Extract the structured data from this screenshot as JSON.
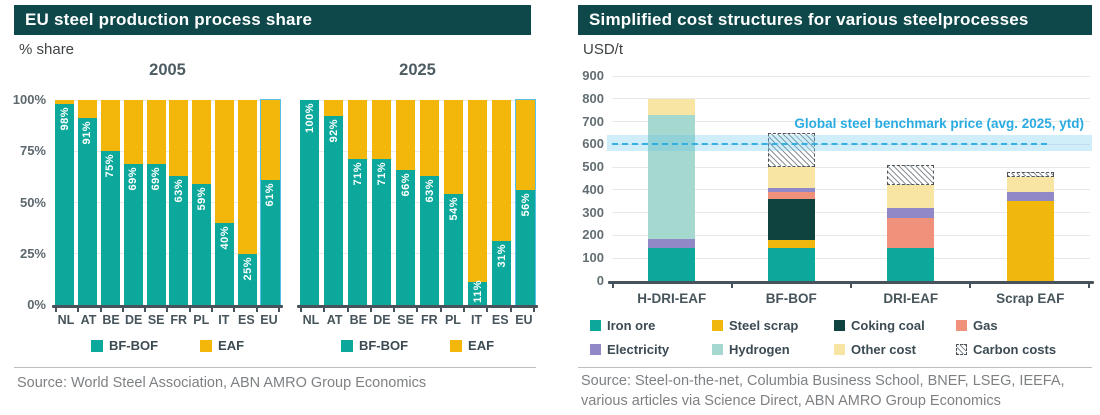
{
  "left_panel": {
    "title": "EU steel production process share",
    "unit_label": "% share",
    "source": "Source: World Steel Association, ABN AMRO Group Economics",
    "legend": [
      {
        "label": "BF-BOF",
        "color_key": "bfbof"
      },
      {
        "label": "EAF",
        "color_key": "eaf"
      }
    ],
    "chart_data": {
      "type": "bar",
      "stacked": true,
      "ylabel": "% share",
      "ylim": [
        0,
        100
      ],
      "yticks": [
        "100%",
        "75%",
        "50%",
        "25%",
        "0%"
      ],
      "categories": [
        "NL",
        "AT",
        "BE",
        "DE",
        "SE",
        "FR",
        "PL",
        "IT",
        "ES",
        "EU"
      ],
      "series_names": [
        "BF-BOF",
        "EAF"
      ],
      "note": "EAF share = 100 - BF-BOF share; EU bar drawn with light-blue outline",
      "groups": [
        {
          "title": "2005",
          "bfbof_share_pct": [
            98,
            91,
            75,
            69,
            69,
            63,
            59,
            40,
            25,
            61
          ]
        },
        {
          "title": "2025",
          "bfbof_share_pct": [
            100,
            92,
            71,
            71,
            66,
            63,
            54,
            11,
            31,
            56
          ]
        }
      ]
    }
  },
  "right_panel": {
    "title": "Simplified cost structures for various steelprocesses",
    "unit_label": "USD/t",
    "source_line1": "Source: Steel-on-the-net, Columbia Business School, BNEF, LSEG, IEEFA,",
    "source_line2": "various articles via Science Direct, ABN AMRO Group Economics",
    "benchmark": {
      "label": "Global steel benchmark price (avg. 2025, ytd)",
      "value": 600,
      "band_low": 570,
      "band_high": 640
    },
    "chart_data": {
      "type": "bar",
      "stacked": true,
      "ylabel": "USD/t",
      "ylim": [
        0,
        900
      ],
      "yticks": [
        900,
        800,
        700,
        600,
        500,
        400,
        300,
        200,
        100,
        0
      ],
      "categories": [
        "H-DRI-EAF",
        "BF-BOF",
        "DRI-EAF",
        "Scrap EAF"
      ],
      "legend_rows": [
        [
          "Iron ore",
          "Steel scrap",
          "Coking coal",
          "Gas"
        ],
        [
          "Electricity",
          "Hydrogen",
          "Other cost",
          "Carbon costs"
        ]
      ],
      "bars": [
        {
          "category": "H-DRI-EAF",
          "segments": [
            [
              "Iron ore",
              145
            ],
            [
              "Electricity",
              40
            ],
            [
              "Hydrogen",
              545
            ],
            [
              "Other cost",
              70
            ]
          ]
        },
        {
          "category": "BF-BOF",
          "segments": [
            [
              "Iron ore",
              145
            ],
            [
              "Steel scrap",
              35
            ],
            [
              "Coking coal",
              180
            ],
            [
              "Gas",
              30
            ],
            [
              "Electricity",
              20
            ],
            [
              "Other cost",
              90
            ],
            [
              "Carbon costs",
              150
            ]
          ]
        },
        {
          "category": "DRI-EAF",
          "segments": [
            [
              "Iron ore",
              145
            ],
            [
              "Gas",
              130
            ],
            [
              "Electricity",
              45
            ],
            [
              "Other cost",
              100
            ],
            [
              "Carbon costs",
              90
            ]
          ]
        },
        {
          "category": "Scrap EAF",
          "segments": [
            [
              "Steel scrap",
              350
            ],
            [
              "Electricity",
              40
            ],
            [
              "Other cost",
              65
            ],
            [
              "Carbon costs",
              25
            ]
          ]
        }
      ]
    }
  },
  "colors": {
    "header_bg": "#0e484a",
    "bfbof": "#0ba89b",
    "eaf": "#f2b70a",
    "eu_bar_outline": "#58c0e8",
    "benchmark_blue": "#29abe2",
    "axis": "#47525a"
  },
  "segment_colors": {
    "Iron ore": "#0ba89b",
    "Steel scrap": "#f0b70c",
    "Coking coal": "#0e433f",
    "Gas": "#f0917c",
    "Electricity": "#9189c7",
    "Hydrogen": "#a5d9cf",
    "Other cost": "#f8e5a3",
    "Carbon costs": "hatch"
  }
}
